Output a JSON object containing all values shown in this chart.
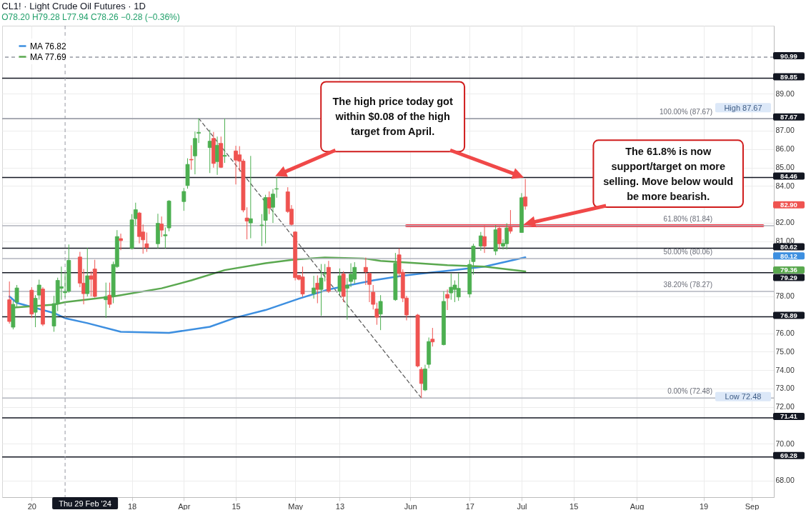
{
  "chart_data": {
    "type": "candlestick",
    "title": "CL1! · Light Crude Oil Futures · 1D",
    "subtitle": "O78.20 H79.28 L77.94 C78.26 −0.28 (−0.36%)",
    "x": [
      "2024-02-14",
      "2024-02-15",
      "2024-02-16",
      "2024-02-20",
      "2024-02-21",
      "2024-02-22",
      "2024-02-23",
      "2024-02-26",
      "2024-02-27",
      "2024-02-28",
      "2024-02-29",
      "2024-03-01",
      "2024-03-04",
      "2024-03-05",
      "2024-03-06",
      "2024-03-07",
      "2024-03-08",
      "2024-03-11",
      "2024-03-12",
      "2024-03-13",
      "2024-03-14",
      "2024-03-15",
      "2024-03-18",
      "2024-03-19",
      "2024-03-20",
      "2024-03-21",
      "2024-03-22",
      "2024-03-25",
      "2024-03-26",
      "2024-03-27",
      "2024-03-28",
      "2024-04-01",
      "2024-04-02",
      "2024-04-03",
      "2024-04-04",
      "2024-04-05",
      "2024-04-08",
      "2024-04-09",
      "2024-04-10",
      "2024-04-11",
      "2024-04-12",
      "2024-04-15",
      "2024-04-16",
      "2024-04-17",
      "2024-04-18",
      "2024-04-19",
      "2024-04-22",
      "2024-04-23",
      "2024-04-24",
      "2024-04-25",
      "2024-04-26",
      "2024-04-29",
      "2024-04-30",
      "2024-05-01",
      "2024-05-02",
      "2024-05-03",
      "2024-05-06",
      "2024-05-07",
      "2024-05-08",
      "2024-05-09",
      "2024-05-10",
      "2024-05-13",
      "2024-05-14",
      "2024-05-15",
      "2024-05-16",
      "2024-05-17",
      "2024-05-20",
      "2024-05-21",
      "2024-05-22",
      "2024-05-23",
      "2024-05-24",
      "2024-05-28",
      "2024-05-29",
      "2024-05-30",
      "2024-05-31",
      "2024-06-03",
      "2024-06-04",
      "2024-06-05",
      "2024-06-06",
      "2024-06-07",
      "2024-06-10",
      "2024-06-11",
      "2024-06-12",
      "2024-06-13",
      "2024-06-14",
      "2024-06-17",
      "2024-06-18",
      "2024-06-20",
      "2024-06-21",
      "2024-06-24",
      "2024-06-25",
      "2024-06-26",
      "2024-06-27",
      "2024-06-28",
      "2024-07-01",
      "2024-07-02"
    ],
    "ohlc": [
      [
        77.82,
        78.81,
        76.52,
        76.64
      ],
      [
        76.33,
        77.76,
        76.21,
        77.57
      ],
      [
        77.69,
        78.62,
        77.38,
        78.46
      ],
      [
        78.34,
        78.5,
        76.83,
        77.04
      ],
      [
        77.14,
        78.07,
        76.33,
        77.9
      ],
      [
        78.07,
        78.91,
        77.82,
        78.62
      ],
      [
        78.4,
        78.5,
        76.39,
        76.49
      ],
      [
        76.39,
        78.03,
        76.08,
        77.61
      ],
      [
        77.61,
        79.02,
        77.2,
        78.87
      ],
      [
        78.44,
        79.62,
        77.82,
        78.53
      ],
      [
        78.2,
        79.28,
        77.94,
        78.26
      ],
      [
        78.28,
        80.82,
        78.2,
        79.96
      ],
      [
        80.14,
        80.42,
        78.5,
        78.72
      ],
      [
        78.72,
        79.49,
        77.57,
        78.15
      ],
      [
        78.15,
        80.63,
        78.0,
        79.12
      ],
      [
        79.12,
        79.37,
        78.0,
        78.93
      ],
      [
        79.49,
        79.99,
        77.94,
        78.0
      ],
      [
        77.82,
        78.75,
        76.83,
        78.0
      ],
      [
        78.07,
        78.75,
        77.38,
        77.57
      ],
      [
        78.0,
        79.89,
        77.63,
        79.74
      ],
      [
        79.62,
        81.6,
        79.55,
        81.25
      ],
      [
        81.14,
        81.41,
        80.51,
        81.03
      ],
      [
        80.61,
        82.47,
        80.55,
        82.16
      ],
      [
        82.22,
        83.09,
        81.85,
        82.71
      ],
      [
        82.53,
        82.59,
        80.88,
        81.25
      ],
      [
        81.5,
        81.91,
        80.32,
        81.07
      ],
      [
        80.86,
        81.47,
        80.42,
        80.65
      ],
      [
        80.86,
        82.49,
        80.61,
        81.97
      ],
      [
        81.93,
        82.34,
        81.23,
        81.6
      ],
      [
        81.29,
        81.75,
        80.61,
        81.35
      ],
      [
        81.72,
        83.23,
        81.54,
        83.18
      ],
      [
        83.15,
        83.89,
        82.65,
        83.7
      ],
      [
        84.02,
        85.5,
        83.85,
        85.17
      ],
      [
        85.44,
        86.21,
        84.88,
        85.41
      ],
      [
        85.63,
        86.95,
        84.63,
        86.58
      ],
      [
        86.86,
        87.67,
        86.33,
        86.91
      ],
      [
        86.08,
        87.05,
        84.7,
        86.43
      ],
      [
        86.58,
        86.93,
        84.99,
        85.22
      ],
      [
        85.32,
        86.68,
        84.6,
        86.21
      ],
      [
        86.31,
        86.68,
        84.97,
        85.01
      ],
      [
        85.61,
        87.65,
        85.25,
        85.66
      ],
      [
        85.9,
        86.18,
        84.08,
        85.4
      ],
      [
        85.69,
        86.16,
        84.78,
        85.34
      ],
      [
        85.35,
        85.46,
        82.57,
        82.69
      ],
      [
        82.26,
        82.84,
        81.1,
        82.09
      ],
      [
        81.99,
        85.63,
        81.16,
        82.22
      ],
      [
        81.85,
        82.47,
        80.73,
        81.88
      ],
      [
        82.13,
        83.52,
        80.88,
        83.37
      ],
      [
        83.37,
        83.7,
        82.47,
        82.8
      ],
      [
        82.84,
        83.83,
        81.99,
        83.56
      ],
      [
        83.83,
        84.46,
        83.36,
        83.85
      ],
      [
        83.68,
        83.93,
        82.53,
        82.61
      ],
      [
        82.74,
        82.96,
        81.85,
        81.91
      ],
      [
        81.5,
        81.54,
        78.87,
        79.02
      ],
      [
        79.14,
        79.18,
        78.87,
        78.93
      ],
      [
        79.06,
        79.62,
        77.98,
        78.13
      ],
      [
        78.15,
        79.12,
        77.88,
        78.46
      ],
      [
        78.72,
        79.14,
        77.63,
        78.38
      ],
      [
        78.38,
        79.76,
        76.95,
        79.0
      ],
      [
        79.22,
        79.76,
        78.81,
        79.24
      ],
      [
        79.58,
        79.93,
        78.19,
        78.28
      ],
      [
        78.28,
        79.52,
        78.07,
        79.12
      ],
      [
        79.22,
        79.37,
        77.69,
        78.0
      ],
      [
        78.44,
        79.0,
        76.74,
        78.62
      ],
      [
        78.81,
        79.8,
        78.5,
        79.21
      ],
      [
        78.93,
        79.86,
        78.69,
        79.58
      ],
      [
        79.58,
        80.11,
        78.62,
        79.33
      ],
      [
        79.25,
        79.31,
        77.69,
        78.65
      ],
      [
        78.23,
        78.62,
        77.29,
        77.57
      ],
      [
        77.32,
        77.66,
        76.46,
        76.87
      ],
      [
        77.04,
        78.07,
        76.17,
        77.73
      ],
      [
        77.82,
        80.36,
        77.76,
        79.8
      ],
      [
        80.26,
        80.61,
        79.06,
        79.25
      ],
      [
        79.31,
        79.47,
        77.69,
        77.91
      ],
      [
        77.91,
        78.03,
        76.7,
        76.99
      ],
      [
        76.99,
        77.05,
        74.15,
        74.22
      ],
      [
        74.04,
        74.16,
        72.48,
        73.27
      ],
      [
        72.92,
        74.29,
        72.86,
        74.06
      ],
      [
        74.31,
        75.77,
        74.1,
        75.55
      ],
      [
        75.68,
        76.29,
        75.28,
        75.53
      ],
      [
        75.38,
        78.28,
        75.34,
        77.73
      ],
      [
        78.11,
        78.38,
        77.26,
        77.91
      ],
      [
        78.19,
        79.24,
        77.82,
        78.5
      ],
      [
        78.38,
        78.87,
        77.69,
        78.62
      ],
      [
        77.97,
        79.27,
        77.76,
        78.44
      ],
      [
        78.13,
        79.99,
        77.94,
        79.74
      ],
      [
        79.89,
        80.86,
        79.18,
        80.73
      ],
      [
        80.73,
        81.5,
        80.48,
        81.29
      ],
      [
        81.25,
        81.85,
        80.36,
        80.73
      ],
      [
        80.46,
        81.87,
        80.24,
        81.62
      ],
      [
        81.7,
        81.82,
        80.58,
        80.86
      ],
      [
        80.73,
        81.1,
        80.55,
        80.88
      ],
      [
        80.86,
        81.97,
        80.55,
        81.72
      ],
      [
        81.75,
        82.69,
        81.41,
        81.54
      ],
      [
        81.47,
        83.61,
        81.45,
        83.36
      ],
      [
        83.4,
        84.38,
        82.71,
        82.9
      ]
    ],
    "series": [
      {
        "type": "line",
        "name": "MA 76.82",
        "color": "#3d8fe0",
        "x": [
          "2024-02-14",
          "2024-02-16",
          "2024-02-26",
          "2024-02-29",
          "2024-03-06",
          "2024-03-15",
          "2024-03-28",
          "2024-04-08",
          "2024-04-15",
          "2024-04-23",
          "2024-05-02",
          "2024-05-10",
          "2024-05-22",
          "2024-05-30",
          "2024-06-04",
          "2024-06-13",
          "2024-06-21",
          "2024-07-02"
        ],
        "values": [
          78.0,
          77.65,
          77.1,
          76.82,
          76.55,
          76.08,
          76.02,
          76.35,
          76.85,
          77.26,
          77.88,
          78.38,
          78.87,
          79.12,
          79.24,
          79.43,
          79.62,
          80.12
        ]
      },
      {
        "type": "line",
        "name": "MA 77.69",
        "color": "#5aa84f",
        "x": [
          "2024-02-14",
          "2024-02-26",
          "2024-02-29",
          "2024-03-13",
          "2024-03-26",
          "2024-04-03",
          "2024-04-12",
          "2024-04-23",
          "2024-05-01",
          "2024-05-09",
          "2024-05-20",
          "2024-05-24",
          "2024-06-03",
          "2024-06-11",
          "2024-06-21",
          "2024-07-02"
        ],
        "values": [
          77.38,
          77.55,
          77.69,
          78.0,
          78.44,
          78.87,
          79.43,
          79.8,
          80.01,
          80.11,
          80.05,
          79.93,
          79.8,
          79.7,
          79.62,
          79.36
        ]
      },
      {
        "type": "line",
        "color": "#555555",
        "line_style": "dashed",
        "x": [
          "2024-04-05",
          "2024-06-04"
        ],
        "values": [
          87.67,
          72.48
        ]
      },
      {
        "type": "line",
        "color": "#f23645",
        "x": [
          "2024-05-31",
          "2024-09-04"
        ],
        "values": [
          81.84,
          81.84
        ]
      }
    ],
    "xlim": [
      "2024-02-13",
      "2024-09-06"
    ],
    "xticks": [
      {
        "value": "2024-02-20",
        "label": "20"
      },
      {
        "value": "2024-03-18",
        "label": "18"
      },
      {
        "value": "2024-04-01",
        "label": "Apr"
      },
      {
        "value": "2024-04-15",
        "label": "15"
      },
      {
        "value": "2024-05-01",
        "label": "May"
      },
      {
        "value": "2024-05-13",
        "label": "13"
      },
      {
        "value": "2024-06-01",
        "label": "Jun"
      },
      {
        "value": "2024-06-17",
        "label": "17"
      },
      {
        "value": "2024-07-01",
        "label": "Jul"
      },
      {
        "value": "2024-07-15",
        "label": "15"
      },
      {
        "value": "2024-08-01",
        "label": "Aug"
      },
      {
        "value": "2024-08-19",
        "label": "19"
      },
      {
        "value": "2024-09-01",
        "label": "Sep"
      }
    ],
    "ylim": [
      67.1,
      92.7
    ],
    "yticks": [
      {
        "value": 68,
        "label": "68.00"
      },
      {
        "value": 70,
        "label": "70.00"
      },
      {
        "value": 72,
        "label": "72.00"
      },
      {
        "value": 73,
        "label": "73.00"
      },
      {
        "value": 74,
        "label": "74.00"
      },
      {
        "value": 75,
        "label": "75.00"
      },
      {
        "value": 76,
        "label": "76.00"
      },
      {
        "value": 78,
        "label": "78.00"
      },
      {
        "value": 81,
        "label": "81.00"
      },
      {
        "value": 82,
        "label": "82.00"
      },
      {
        "value": 84,
        "label": "84.00"
      },
      {
        "value": 85,
        "label": "85.00"
      },
      {
        "value": 86,
        "label": "86.00"
      },
      {
        "value": 87,
        "label": "87.00"
      },
      {
        "value": 89,
        "label": "89.00"
      }
    ],
    "ref_lines": [
      {
        "axis": "x",
        "value": "2024-02-29",
        "label": "Thu 29 Feb '24",
        "color": "#9598a1",
        "line_style": "dashed"
      },
      {
        "axis": "y",
        "value": 90.99,
        "label": "90.99",
        "color": "#9598a1",
        "line_style": "dashed"
      },
      {
        "axis": "y",
        "value": 89.85,
        "label": "89.85",
        "color": "#131722"
      },
      {
        "axis": "y",
        "value": 87.67,
        "label": "87.67",
        "color": "#131722"
      },
      {
        "axis": "y",
        "value": 84.46,
        "label": "84.46",
        "color": "#131722"
      },
      {
        "axis": "y",
        "value": 80.62,
        "label": "80.62",
        "color": "#131722"
      },
      {
        "axis": "y",
        "value": 79.29,
        "label": "79.29",
        "color": "#131722"
      },
      {
        "axis": "y",
        "value": 76.89,
        "label": "76.89",
        "color": "#131722"
      },
      {
        "axis": "y",
        "value": 71.41,
        "label": "71.41",
        "color": "#131722"
      },
      {
        "axis": "y",
        "value": 69.28,
        "label": "69.28",
        "color": "#131722"
      },
      {
        "axis": "y",
        "value": 87.67,
        "label": "100.00% (87.67)",
        "color": "#b2b5be"
      },
      {
        "axis": "y",
        "value": 81.84,
        "label": "61.80% (81.84)",
        "color": "#b2b5be"
      },
      {
        "axis": "y",
        "value": 80.06,
        "label": "50.00% (80.06)",
        "color": "#b2b5be"
      },
      {
        "axis": "y",
        "value": 78.27,
        "label": "38.20% (78.27)",
        "color": "#b2b5be"
      },
      {
        "axis": "y",
        "value": 72.48,
        "label": "0.00% (72.48)",
        "color": "#b2b5be"
      }
    ],
    "annotations": [
      "The high price today got within $0.08 of the high target from April.",
      "The 61.8% is now support/target on more selling. Move below would be more bearish.",
      {
        "text": "High 87.67",
        "y": 87.67
      },
      {
        "text": "Low 72.48",
        "y": 72.48
      },
      "80.12",
      "79.36"
    ],
    "value_labels": [
      null,
      null,
      null,
      null,
      null,
      null,
      null,
      null,
      null,
      null,
      null,
      null,
      null,
      null,
      null,
      null,
      null,
      null,
      null,
      null,
      null,
      null,
      null,
      null,
      null,
      null,
      null,
      null,
      null,
      null,
      null,
      null,
      null,
      null,
      null,
      null,
      null,
      null,
      null,
      null,
      null,
      null,
      null,
      null,
      null,
      null,
      null,
      null,
      null,
      null,
      null,
      null,
      null,
      null,
      null,
      null,
      null,
      null,
      null,
      null,
      null,
      null,
      null,
      null,
      null,
      null,
      null,
      null,
      null,
      null,
      null,
      null,
      null,
      null,
      null,
      null,
      null,
      null,
      null,
      null,
      null,
      null,
      null,
      null,
      null,
      null,
      null,
      null,
      null,
      null,
      null,
      null,
      null,
      null,
      null,
      "82.90"
    ],
    "grid": true,
    "legend": "top left"
  }
}
